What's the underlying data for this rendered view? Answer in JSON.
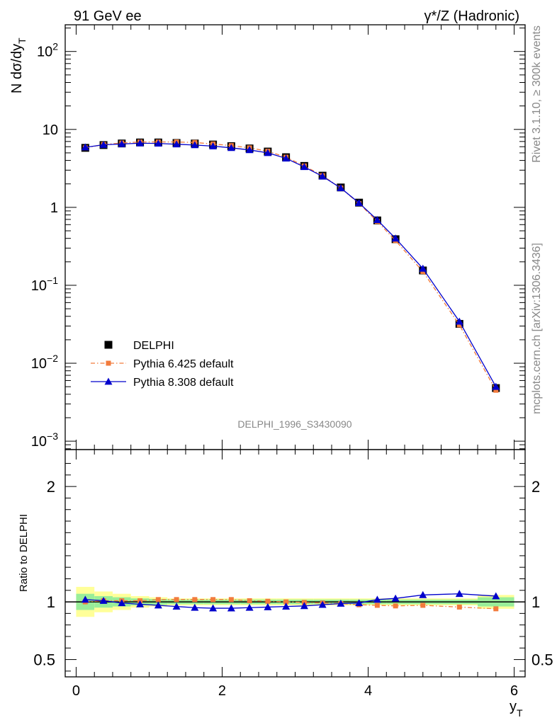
{
  "header": {
    "left": "91 GeV ee",
    "right": "γ*/Z (Hadronic)"
  },
  "side_labels": {
    "top": "Rivet 3.1.10, ≥ 300k events",
    "bottom": "mcplots.cern.ch [arXiv:1306.3436]"
  },
  "watermark": "DELPHI_1996_S3430090",
  "axes": {
    "ylabel_main": "N dσ/dy",
    "ylabel_main_sub": "T",
    "ylabel_ratio": "Ratio to DELPHI",
    "xlabel": "y",
    "xlabel_sub": "T",
    "xlim": [
      -0.15,
      6.15
    ],
    "main_ylim": [
      0.00078,
      220
    ],
    "main_yscale": "log",
    "ratio_ylim": [
      0.35,
      2.32
    ],
    "x_ticks": [
      "0",
      "2",
      "4",
      "6"
    ],
    "main_y_ticks": [
      {
        "value": 0.001,
        "base": "10",
        "exp": "−3"
      },
      {
        "value": 0.01,
        "base": "10",
        "exp": "−2"
      },
      {
        "value": 0.1,
        "base": "10",
        "exp": "−1"
      },
      {
        "value": 1,
        "base": "1",
        "exp": ""
      },
      {
        "value": 10,
        "base": "10",
        "exp": ""
      },
      {
        "value": 100,
        "base": "10",
        "exp": "2"
      }
    ],
    "ratio_y_ticks": [
      "0.5",
      "1",
      "2"
    ]
  },
  "legend": [
    {
      "label": "DELPHI",
      "color": "#000000",
      "marker": "square",
      "line": "none"
    },
    {
      "label": "Pythia 6.425 default",
      "color": "#f27b3c",
      "marker": "square",
      "line": "dashdot"
    },
    {
      "label": "Pythia 8.308 default",
      "color": "#0000cc",
      "marker": "triangle",
      "line": "solid"
    }
  ],
  "chart_data": {
    "type": "scatter",
    "x": [
      0.125,
      0.375,
      0.625,
      0.875,
      1.125,
      1.375,
      1.625,
      1.875,
      2.125,
      2.375,
      2.625,
      2.875,
      3.125,
      3.375,
      3.625,
      3.875,
      4.125,
      4.375,
      4.75,
      5.25,
      5.75
    ],
    "series": [
      {
        "name": "DELPHI",
        "values": [
          5.8,
          6.3,
          6.6,
          6.8,
          6.8,
          6.7,
          6.6,
          6.4,
          6.1,
          5.7,
          5.2,
          4.4,
          3.4,
          2.55,
          1.8,
          1.15,
          0.68,
          0.39,
          0.155,
          0.032,
          0.0048
        ]
      },
      {
        "name": "Pythia 6.425 default",
        "values": [
          5.8,
          6.4,
          6.7,
          6.9,
          6.9,
          6.9,
          6.8,
          6.5,
          6.2,
          5.8,
          5.25,
          4.4,
          3.4,
          2.55,
          1.77,
          1.12,
          0.66,
          0.375,
          0.15,
          0.031,
          0.0045
        ]
      },
      {
        "name": "Pythia 8.308 default",
        "values": [
          5.9,
          6.35,
          6.5,
          6.65,
          6.6,
          6.45,
          6.3,
          6.1,
          5.8,
          5.45,
          5.0,
          4.25,
          3.3,
          2.5,
          1.77,
          1.14,
          0.69,
          0.4,
          0.164,
          0.0343,
          0.005
        ]
      }
    ],
    "ratio": {
      "Pythia 6.425 default": [
        1.0,
        1.01,
        1.01,
        1.01,
        1.02,
        1.02,
        1.02,
        1.02,
        1.02,
        1.01,
        1.005,
        1.0,
        0.995,
        0.99,
        0.985,
        0.975,
        0.97,
        0.965,
        0.97,
        0.955,
        0.94
      ],
      "Pythia 8.308 default": [
        1.02,
        1.01,
        0.99,
        0.98,
        0.97,
        0.96,
        0.95,
        0.945,
        0.945,
        0.95,
        0.955,
        0.96,
        0.965,
        0.975,
        0.985,
        0.99,
        1.02,
        1.03,
        1.06,
        1.07,
        1.05
      ]
    },
    "uncertainty_bands": {
      "edges": [
        0.0,
        0.25,
        0.5,
        0.75,
        1.0,
        1.25,
        1.5,
        1.75,
        2.0,
        2.25,
        2.5,
        2.75,
        3.0,
        3.25,
        3.5,
        3.75,
        4.0,
        4.25,
        4.5,
        5.0,
        5.5,
        6.0
      ],
      "stat": [
        0.07,
        0.05,
        0.04,
        0.03,
        0.025,
        0.02,
        0.02,
        0.02,
        0.02,
        0.02,
        0.02,
        0.02,
        0.02,
        0.02,
        0.02,
        0.02,
        0.02,
        0.02,
        0.02,
        0.02,
        0.04
      ],
      "total": [
        0.13,
        0.09,
        0.07,
        0.05,
        0.04,
        0.03,
        0.03,
        0.03,
        0.03,
        0.03,
        0.03,
        0.03,
        0.03,
        0.03,
        0.03,
        0.03,
        0.03,
        0.03,
        0.03,
        0.03,
        0.06
      ],
      "stat_color": "#99ee99",
      "total_color": "#ffff99"
    }
  }
}
